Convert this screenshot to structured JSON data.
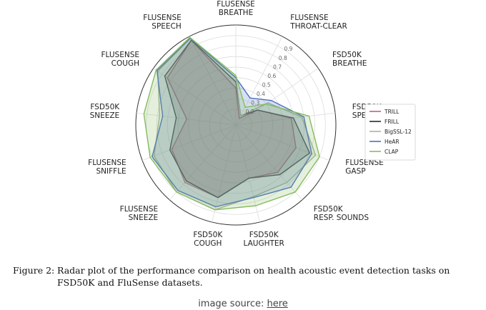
{
  "chart_data": {
    "type": "radar",
    "axes": [
      "FLUSENSE\nBREATHE",
      "FLUSENSE\nTHROAT-CLEAR",
      "FSD50K\nBREATHE",
      "FSD50K\nSPEECH",
      "FLUSENSE\nGASP",
      "FSD50K\nRESP. SOUNDS",
      "FSD50K\nLAUGHTER",
      "FSD50K\nCOUGH",
      "FLUSENSE\nSNEEZE",
      "FLUSENSE\nSNIFFLE",
      "FSD50K\nSNEEZE",
      "FLUSENSE\nCOUGH",
      "FLUSENSE\nSPEECH"
    ],
    "rticks": [
      0.2,
      0.3,
      0.4,
      0.5,
      0.6,
      0.7,
      0.8,
      0.9
    ],
    "rlim": [
      0.05,
      1.0
    ],
    "grid": true,
    "legend_position": "right",
    "series": [
      {
        "name": "TRILL",
        "color": "#c0627b",
        "values": [
          0.4,
          0.12,
          0.3,
          0.58,
          0.66,
          0.65,
          0.57,
          0.76,
          0.78,
          0.7,
          0.52,
          0.84,
          0.96
        ]
      },
      {
        "name": "FRILL",
        "color": "#2a2a2a",
        "values": [
          0.46,
          0.15,
          0.3,
          0.6,
          0.8,
          0.68,
          0.57,
          0.76,
          0.76,
          0.72,
          0.62,
          0.87,
          0.96
        ]
      },
      {
        "name": "BigSSL-12",
        "color": "#a8b49e",
        "values": [
          0.5,
          0.15,
          0.42,
          0.68,
          0.86,
          0.78,
          0.75,
          0.88,
          0.9,
          0.88,
          0.78,
          0.95,
          0.98
        ]
      },
      {
        "name": "HeAR",
        "color": "#4a6fc0",
        "values": [
          0.5,
          0.34,
          0.46,
          0.7,
          0.82,
          0.84,
          0.76,
          0.85,
          0.88,
          0.9,
          0.75,
          0.96,
          0.98
        ]
      },
      {
        "name": "CLAP",
        "color": "#86bc5e",
        "values": [
          0.52,
          0.24,
          0.4,
          0.75,
          0.9,
          0.9,
          0.84,
          0.88,
          0.9,
          0.92,
          0.93,
          0.97,
          0.99
        ]
      }
    ]
  },
  "caption": {
    "label": "Figure 2:",
    "text": "Radar plot of the performance comparison on health acoustic event detection tasks on FSD50K and FluSense datasets."
  },
  "source": {
    "prefix": "image source: ",
    "link": "here"
  }
}
